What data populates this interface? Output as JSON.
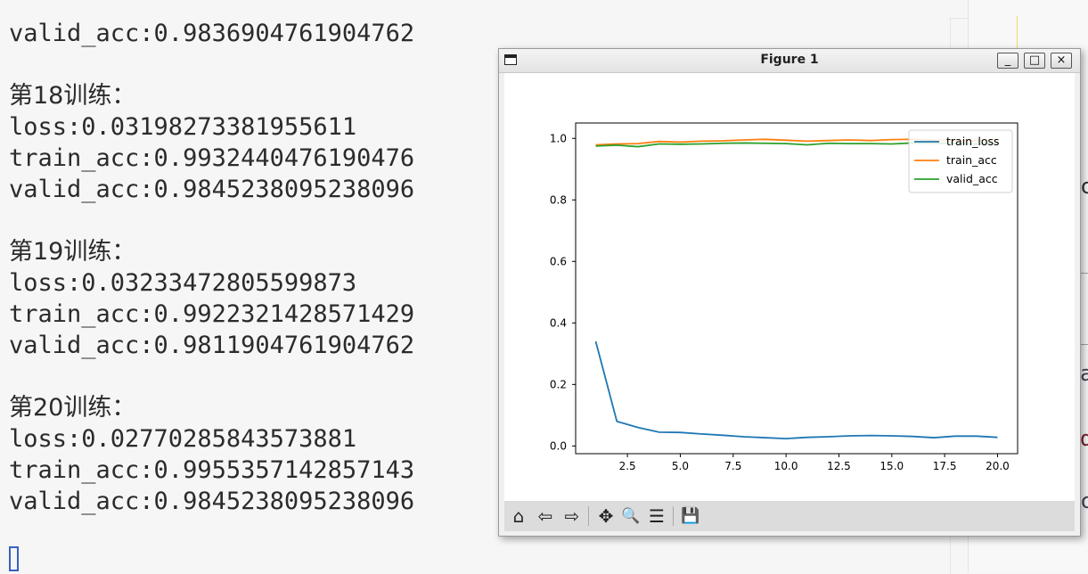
{
  "console": {
    "lines": [
      {
        "text": "valid_acc:0.9836904761904762",
        "kind": "value"
      },
      {
        "text": "",
        "kind": "blank"
      },
      {
        "text": "第18训练：",
        "kind": "header"
      },
      {
        "text": "loss:0.03198273381955611",
        "kind": "value"
      },
      {
        "text": "train_acc:0.9932440476190476",
        "kind": "value"
      },
      {
        "text": "valid_acc:0.9845238095238096",
        "kind": "value"
      },
      {
        "text": "",
        "kind": "blank"
      },
      {
        "text": "第19训练：",
        "kind": "header"
      },
      {
        "text": "loss:0.03233472805599873",
        "kind": "value"
      },
      {
        "text": "train_acc:0.9922321428571429",
        "kind": "value"
      },
      {
        "text": "valid_acc:0.9811904761904762",
        "kind": "value"
      },
      {
        "text": "",
        "kind": "blank"
      },
      {
        "text": "第20训练：",
        "kind": "header"
      },
      {
        "text": "loss:0.02770285843573881",
        "kind": "value"
      },
      {
        "text": "train_acc:0.9955357142857143",
        "kind": "value"
      },
      {
        "text": "valid_acc:0.9845238095238096",
        "kind": "value"
      }
    ]
  },
  "window": {
    "title": "Figure 1",
    "minimize_label": "_",
    "maximize_label": "□",
    "close_label": "×"
  },
  "toolbar": {
    "tools": [
      {
        "name": "home-icon",
        "glyph": "⌂"
      },
      {
        "name": "back-arrow-icon",
        "glyph": "⇦"
      },
      {
        "name": "forward-arrow-icon",
        "glyph": "⇨"
      },
      {
        "name": "pan-move-icon",
        "glyph": "✥"
      },
      {
        "name": "zoom-magnifier-icon",
        "glyph": "🔍"
      },
      {
        "name": "configure-subplots-icon",
        "glyph": "☰"
      },
      {
        "name": "save-figure-icon",
        "glyph": "💾"
      }
    ]
  },
  "chart_data": {
    "type": "line",
    "title": "",
    "xlabel": "",
    "ylabel": "",
    "xlim": [
      0.05,
      20.95
    ],
    "ylim": [
      -0.025,
      1.05
    ],
    "xticks": [
      2.5,
      5.0,
      7.5,
      10.0,
      12.5,
      15.0,
      17.5,
      20.0
    ],
    "xtick_labels": [
      "2.5",
      "5.0",
      "7.5",
      "10.0",
      "12.5",
      "15.0",
      "17.5",
      "20.0"
    ],
    "yticks": [
      0.0,
      0.2,
      0.4,
      0.6,
      0.8,
      1.0
    ],
    "ytick_labels": [
      "0.0",
      "0.2",
      "0.4",
      "0.6",
      "0.8",
      "1.0"
    ],
    "legend_position": "top-right",
    "grid": false,
    "x": [
      1,
      2,
      3,
      4,
      5,
      6,
      7,
      8,
      9,
      10,
      11,
      12,
      13,
      14,
      15,
      16,
      17,
      18,
      19,
      20
    ],
    "series": [
      {
        "name": "train_loss",
        "color": "#1f77b4",
        "values": [
          0.34,
          0.08,
          0.06,
          0.045,
          0.044,
          0.039,
          0.035,
          0.03,
          0.027,
          0.024,
          0.028,
          0.03,
          0.033,
          0.034,
          0.033,
          0.031,
          0.027,
          0.032,
          0.032,
          0.028
        ]
      },
      {
        "name": "train_acc",
        "color": "#ff7f0e",
        "values": [
          0.979,
          0.982,
          0.983,
          0.99,
          0.988,
          0.991,
          0.992,
          0.995,
          0.997,
          0.994,
          0.991,
          0.993,
          0.995,
          0.993,
          0.996,
          0.997,
          0.994,
          0.993,
          0.992,
          0.996
        ]
      },
      {
        "name": "valid_acc",
        "color": "#2ca02c",
        "values": [
          0.975,
          0.978,
          0.973,
          0.982,
          0.981,
          0.982,
          0.984,
          0.985,
          0.984,
          0.983,
          0.979,
          0.984,
          0.983,
          0.983,
          0.982,
          0.985,
          0.984,
          0.984,
          0.981,
          0.985
        ]
      }
    ]
  }
}
